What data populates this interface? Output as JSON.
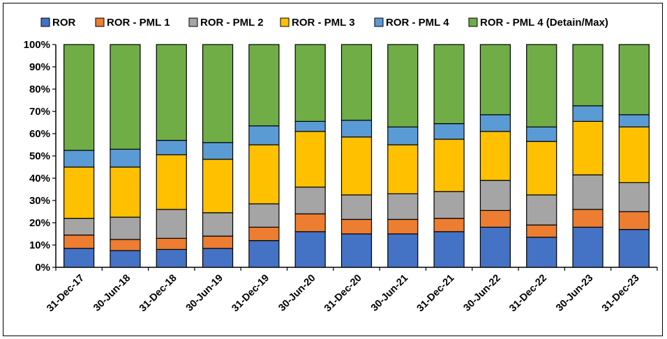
{
  "chart_data": {
    "type": "bar",
    "stacked": true,
    "percent": true,
    "title": "",
    "xlabel": "",
    "ylabel": "",
    "ylim": [
      0,
      100
    ],
    "yticks": [
      "0%",
      "10%",
      "20%",
      "30%",
      "40%",
      "50%",
      "60%",
      "70%",
      "80%",
      "90%",
      "100%"
    ],
    "grid": false,
    "legend_position": "top",
    "categories": [
      "31-Dec-17",
      "30-Jun-18",
      "31-Dec-18",
      "30-Jun-19",
      "31-Dec-19",
      "30-Jun-20",
      "31-Dec-20",
      "30-Jun-21",
      "31-Dec-21",
      "30-Jun-22",
      "31-Dec-22",
      "30-Jun-23",
      "31-Dec-23"
    ],
    "series": [
      {
        "name": "ROR",
        "color": "#4472C4",
        "values": [
          8.5,
          7.5,
          8.0,
          8.5,
          12.0,
          16.0,
          15.0,
          15.0,
          16.0,
          18.0,
          13.5,
          18.0,
          17.0
        ]
      },
      {
        "name": "ROR - PML 1",
        "color": "#ED7D31",
        "values": [
          6.0,
          5.0,
          5.0,
          5.5,
          6.0,
          8.0,
          6.5,
          6.5,
          6.0,
          7.5,
          5.5,
          8.0,
          8.0
        ]
      },
      {
        "name": "ROR - PML 2",
        "color": "#A5A5A5",
        "values": [
          7.5,
          10.0,
          13.0,
          10.5,
          10.5,
          12.0,
          11.0,
          11.5,
          12.0,
          13.5,
          13.5,
          15.5,
          13.0
        ]
      },
      {
        "name": "ROR - PML 3",
        "color": "#FFC000",
        "values": [
          23.0,
          22.5,
          24.5,
          24.0,
          26.5,
          25.0,
          26.0,
          22.0,
          23.5,
          22.0,
          24.0,
          24.0,
          25.0
        ]
      },
      {
        "name": "ROR - PML 4",
        "color": "#5B9BD5",
        "values": [
          7.5,
          8.0,
          6.5,
          7.5,
          8.5,
          4.5,
          7.5,
          8.0,
          7.0,
          7.5,
          6.5,
          7.0,
          5.5
        ]
      },
      {
        "name": "ROR - PML 4 (Detain/Max)",
        "color": "#70AD47",
        "values": [
          47.5,
          47.0,
          43.0,
          44.0,
          36.5,
          34.5,
          34.0,
          37.0,
          35.5,
          31.5,
          37.0,
          27.5,
          31.5
        ]
      }
    ]
  }
}
